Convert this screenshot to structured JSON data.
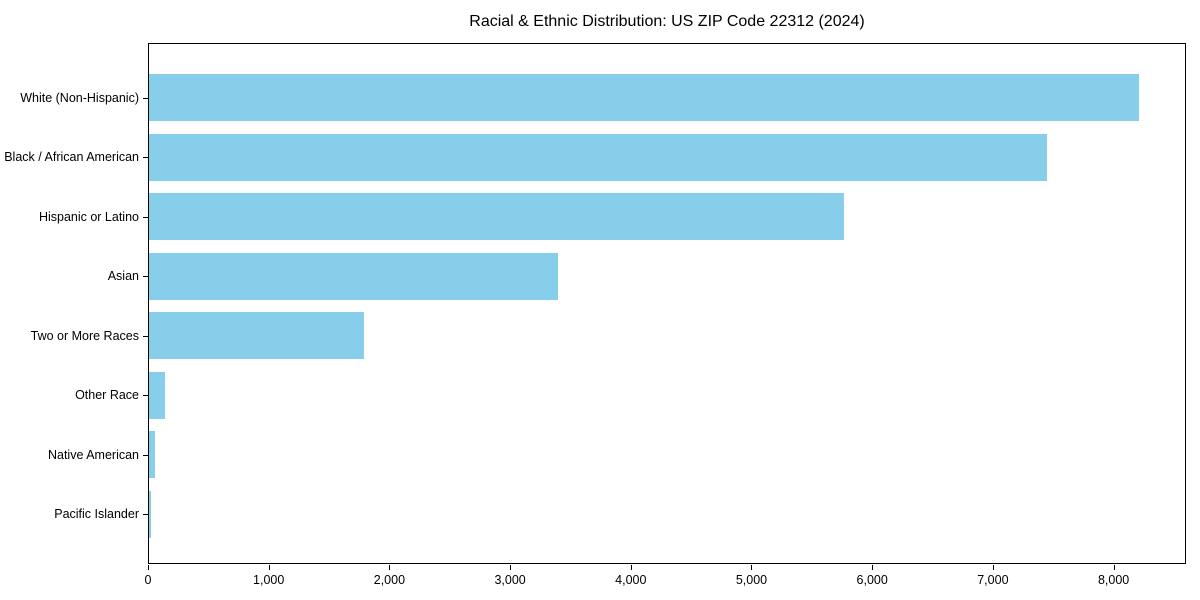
{
  "chart_data": {
    "type": "bar",
    "orientation": "horizontal",
    "title": "Racial & Ethnic Distribution: US ZIP Code 22312 (2024)",
    "categories": [
      "White (Non-Hispanic)",
      "Black / African American",
      "Hispanic or Latino",
      "Asian",
      "Two or More Races",
      "Other Race",
      "Native American",
      "Pacific Islander"
    ],
    "values": [
      8200,
      7440,
      5760,
      3390,
      1780,
      130,
      50,
      20
    ],
    "xlabel": "",
    "ylabel": "",
    "xlim": [
      0,
      8600
    ],
    "x_ticks": [
      0,
      1000,
      2000,
      3000,
      4000,
      5000,
      6000,
      7000,
      8000
    ],
    "x_tick_labels": [
      "0",
      "1,000",
      "2,000",
      "3,000",
      "4,000",
      "5,000",
      "6,000",
      "7,000",
      "8,000"
    ],
    "bar_color": "#87CEEB",
    "background_color": "#ffffff",
    "spine_color": "#000000",
    "grid": false,
    "legend": null
  }
}
